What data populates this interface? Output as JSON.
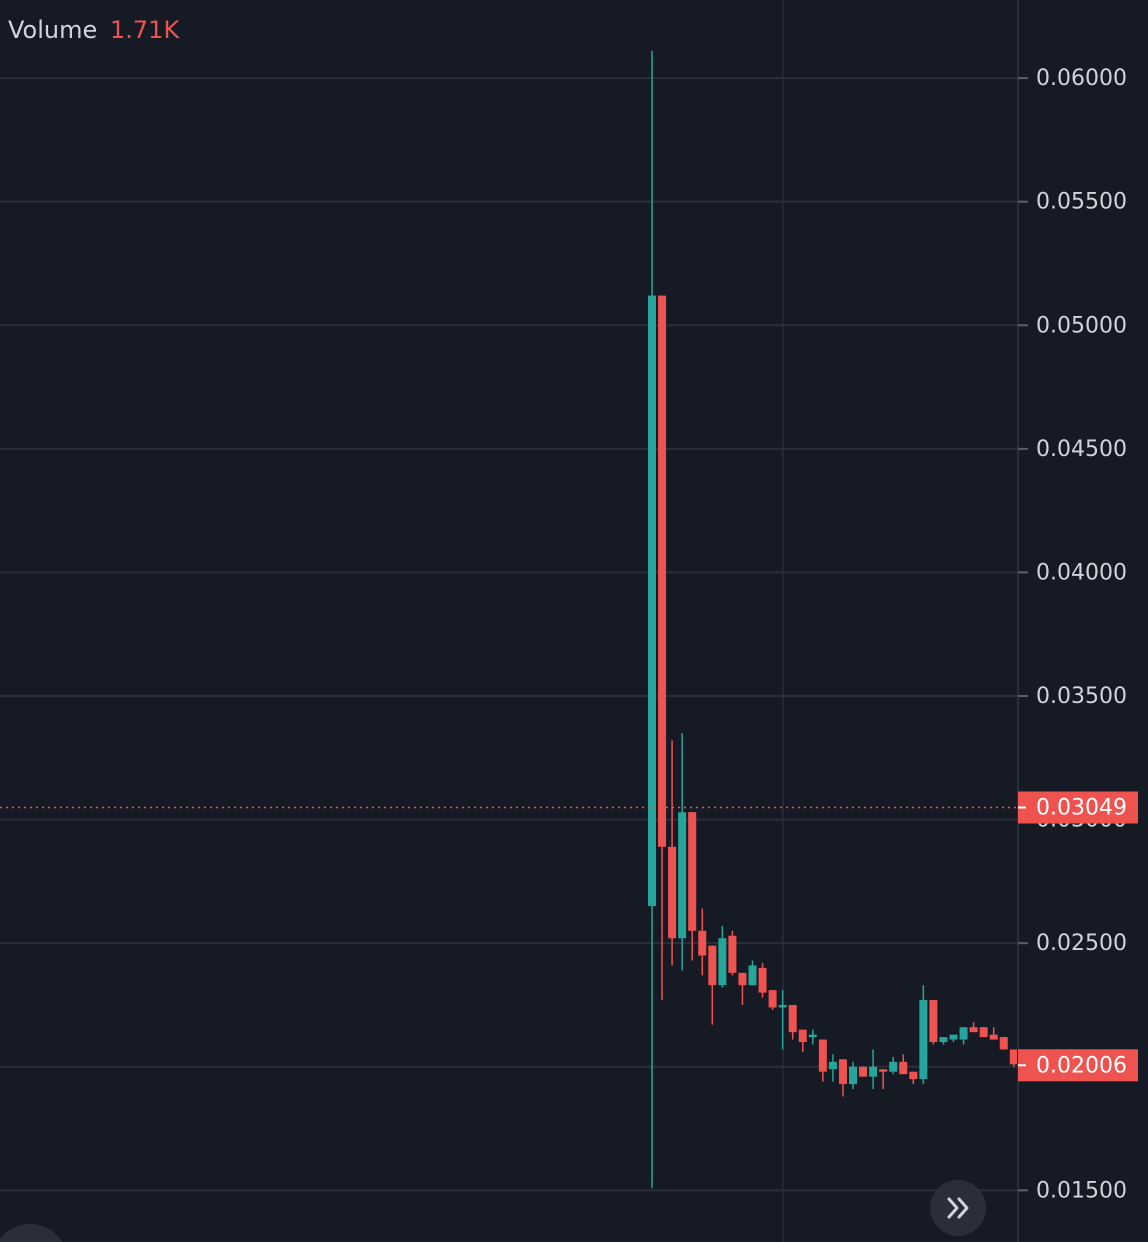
{
  "chart_data": {
    "type": "candlestick",
    "legend": {
      "name": "Volume",
      "value": "1.71K"
    },
    "open": [
      0.0265,
      0.0512,
      0.0289,
      0.0252,
      0.0303,
      0.0255,
      0.0249,
      0.0233,
      0.0253,
      0.0238,
      0.0233,
      0.024,
      0.0231,
      0.0224,
      0.0225,
      0.0215,
      0.0212,
      0.0211,
      0.0199,
      0.0203,
      0.0193,
      0.02,
      0.0196,
      0.0199,
      0.0198,
      0.0202,
      0.0198,
      0.0195,
      0.0227,
      0.021,
      0.0211,
      0.0211,
      0.0216,
      0.0216,
      0.0213,
      0.0212,
      0.0207
    ],
    "high": [
      0.0611,
      0.0512,
      0.0332,
      0.0335,
      0.0303,
      0.0264,
      0.0249,
      0.0257,
      0.0255,
      0.0238,
      0.0243,
      0.0242,
      0.0231,
      0.0231,
      0.0225,
      0.0215,
      0.0215,
      0.0211,
      0.0205,
      0.0203,
      0.0202,
      0.02,
      0.0207,
      0.0199,
      0.0204,
      0.0205,
      0.0198,
      0.0233,
      0.0227,
      0.0212,
      0.0213,
      0.0216,
      0.0218,
      0.0216,
      0.0216,
      0.0212,
      0.0207
    ],
    "low": [
      0.0151,
      0.0227,
      0.0241,
      0.0239,
      0.0243,
      0.0237,
      0.0217,
      0.0232,
      0.0237,
      0.0225,
      0.0233,
      0.0228,
      0.0223,
      0.0207,
      0.0211,
      0.0206,
      0.0209,
      0.0194,
      0.0194,
      0.0188,
      0.0191,
      0.0196,
      0.0191,
      0.0191,
      0.0197,
      0.0197,
      0.0193,
      0.0193,
      0.0209,
      0.0209,
      0.021,
      0.0209,
      0.0214,
      0.0212,
      0.0211,
      0.0207,
      0.02
    ],
    "close": [
      0.0512,
      0.0289,
      0.0252,
      0.0303,
      0.0255,
      0.0245,
      0.0233,
      0.0252,
      0.0238,
      0.0233,
      0.0241,
      0.023,
      0.0224,
      0.0225,
      0.0214,
      0.021,
      0.0213,
      0.0198,
      0.0202,
      0.0193,
      0.02,
      0.0196,
      0.02,
      0.0198,
      0.0202,
      0.0197,
      0.0195,
      0.0227,
      0.021,
      0.0212,
      0.0213,
      0.0216,
      0.0214,
      0.0212,
      0.0211,
      0.0207,
      0.0201
    ],
    "up_color": "#26a69a",
    "down_color": "#ef5350",
    "ylim": [
      0.01291,
      0.06316
    ],
    "yticks": [
      {
        "value": 0.015,
        "label": "0.01500"
      },
      {
        "value": 0.02,
        "label": "0.02000"
      },
      {
        "value": 0.025,
        "label": "0.02500"
      },
      {
        "value": 0.03,
        "label": "0.03000"
      },
      {
        "value": 0.035,
        "label": "0.03500"
      },
      {
        "value": 0.04,
        "label": "0.04000"
      },
      {
        "value": 0.045,
        "label": "0.04500"
      },
      {
        "value": 0.05,
        "label": "0.05000"
      },
      {
        "value": 0.055,
        "label": "0.05500"
      },
      {
        "value": 0.06,
        "label": "0.06000"
      }
    ],
    "grid": true,
    "price_labels": [
      0.03049,
      0.02006
    ],
    "price_label_color": "#ef5350"
  }
}
